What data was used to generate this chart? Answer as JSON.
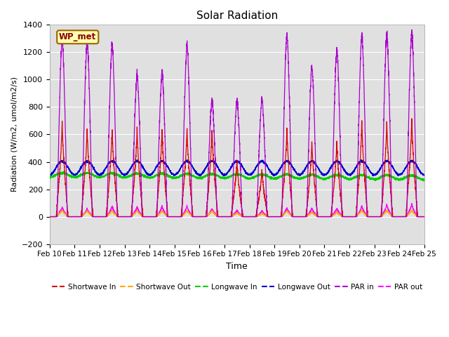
{
  "title": "Solar Radiation",
  "ylabel": "Radiation (W/m2, umol/m2/s)",
  "xlabel": "Time",
  "ylim": [
    -200,
    1400
  ],
  "yticks": [
    -200,
    0,
    200,
    400,
    600,
    800,
    1000,
    1200,
    1400
  ],
  "xtick_labels": [
    "Feb 10",
    "Feb 11",
    "Feb 12",
    "Feb 13",
    "Feb 14",
    "Feb 15",
    "Feb 16",
    "Feb 17",
    "Feb 18",
    "Feb 19",
    "Feb 20",
    "Feb 21",
    "Feb 22",
    "Feb 23",
    "Feb 24",
    "Feb 25"
  ],
  "station_label": "WP_met",
  "bg_color": "#e0e0e0",
  "colors": {
    "shortwave_in": "#dd0000",
    "shortwave_out": "#ffaa00",
    "longwave_in": "#00cc00",
    "longwave_out": "#0000cc",
    "par_in": "#aa00cc",
    "par_out": "#ff00ff"
  },
  "legend_entries": [
    "Shortwave In",
    "Shortwave Out",
    "Longwave In",
    "Longwave Out",
    "PAR in",
    "PAR out"
  ],
  "num_days": 15,
  "points_per_day": 288
}
